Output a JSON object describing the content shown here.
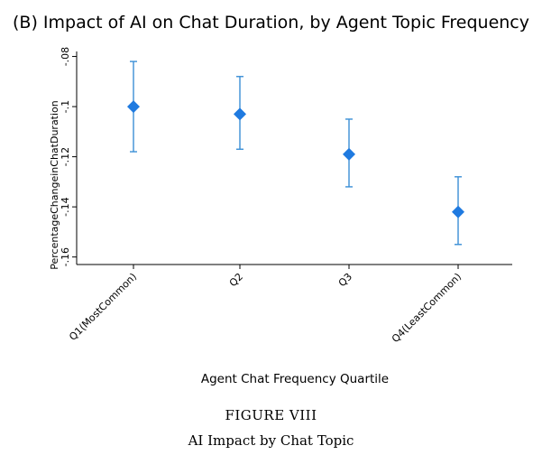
{
  "chart_data": {
    "type": "scatter",
    "title": "(B)  Impact of AI on Chat Duration, by Agent Topic Frequency",
    "xlabel": "Agent Chat Frequency Quartile",
    "ylabel": "PercentageChangeinChatDuration",
    "categories": [
      "Q1(MostCommon)",
      "Q2",
      "Q3",
      "Q4(LeastCommon)"
    ],
    "values": [
      -0.1,
      -0.103,
      -0.119,
      -0.142
    ],
    "ci_low": [
      -0.118,
      -0.117,
      -0.132,
      -0.155
    ],
    "ci_high": [
      -0.082,
      -0.088,
      -0.105,
      -0.128
    ],
    "y_ticks": [
      -0.08,
      -0.1,
      -0.12,
      -0.14,
      -0.16
    ],
    "y_tick_labels": [
      "-.08",
      "-.1",
      "-.12",
      "-.14",
      "-.16"
    ],
    "ylim": [
      -0.163,
      -0.078
    ],
    "grid": false,
    "colors": {
      "marker": "#1f7ae0",
      "errorbar": "#3a8fd6",
      "axis": "#000000"
    }
  },
  "figure": {
    "label": "FIGURE VIII",
    "caption": "AI Impact by Chat Topic"
  }
}
